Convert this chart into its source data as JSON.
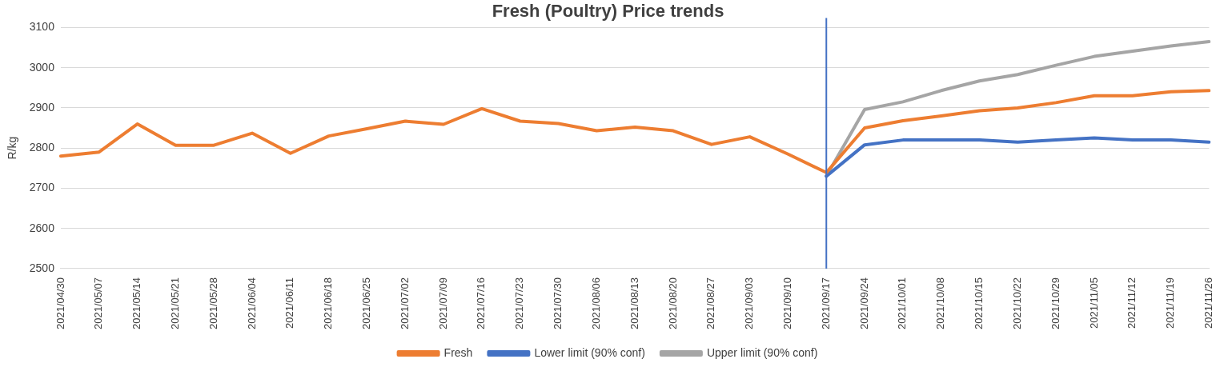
{
  "chart_data": {
    "type": "line",
    "title": "Fresh (Poultry) Price trends",
    "ylabel": "R/kg",
    "categories": [
      "2021/04/30",
      "2021/05/07",
      "2021/05/14",
      "2021/05/21",
      "2021/05/28",
      "2021/06/04",
      "2021/06/11",
      "2021/06/18",
      "2021/06/25",
      "2021/07/02",
      "2021/07/09",
      "2021/07/16",
      "2021/07/23",
      "2021/07/30",
      "2021/08/06",
      "2021/08/13",
      "2021/08/20",
      "2021/08/27",
      "2021/09/03",
      "2021/09/10",
      "2021/09/17",
      "2021/09/24",
      "2021/10/01",
      "2021/10/08",
      "2021/10/15",
      "2021/10/22",
      "2021/10/29",
      "2021/11/05",
      "2021/11/12",
      "2021/11/19",
      "2021/11/26"
    ],
    "series": [
      {
        "name": "Fresh",
        "color": "#ed7d31",
        "values": [
          2780,
          2790,
          2860,
          2807,
          2807,
          2837,
          2787,
          2830,
          2848,
          2867,
          2859,
          2898,
          2867,
          2861,
          2843,
          2852,
          2843,
          2809,
          2828,
          2785,
          2739,
          2850,
          2868,
          2880,
          2893,
          2900,
          2913,
          2930,
          2930,
          2940,
          2943
        ]
      },
      {
        "name": "Lower limit (90% conf)",
        "color": "#4472c4",
        "values": [
          null,
          null,
          null,
          null,
          null,
          null,
          null,
          null,
          null,
          null,
          null,
          null,
          null,
          null,
          null,
          null,
          null,
          null,
          null,
          null,
          2730,
          2808,
          2820,
          2820,
          2820,
          2815,
          2820,
          2825,
          2820,
          2820,
          2815
        ]
      },
      {
        "name": "Upper limit (90% conf)",
        "color": "#a5a5a5",
        "values": [
          null,
          null,
          null,
          null,
          null,
          null,
          null,
          null,
          null,
          null,
          null,
          null,
          null,
          null,
          null,
          null,
          null,
          null,
          null,
          null,
          2730,
          2896,
          2915,
          2943,
          2967,
          2983,
          3006,
          3028,
          3041,
          3054,
          3065
        ]
      }
    ],
    "ylim": [
      2500,
      3100
    ],
    "yticks": [
      2500,
      2600,
      2700,
      2800,
      2900,
      3000,
      3100
    ],
    "grid": "y",
    "legend": "bottom",
    "ref_lines": [
      {
        "axis": "x",
        "value": "2021/09/17",
        "color": "#4472c4"
      }
    ]
  }
}
